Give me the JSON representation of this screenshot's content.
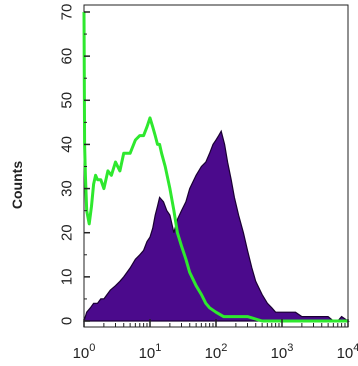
{
  "chart_data": {
    "type": "area",
    "ylabel": "Counts",
    "xscale": "log",
    "xlim": [
      1,
      10000
    ],
    "ylim": [
      0,
      70
    ],
    "grid": false,
    "yticks": [
      {
        "value": 0,
        "label": "0"
      },
      {
        "value": 10,
        "label": "10"
      },
      {
        "value": 20,
        "label": "20"
      },
      {
        "value": 30,
        "label": "30"
      },
      {
        "value": 40,
        "label": "40"
      },
      {
        "value": 50,
        "label": "50"
      },
      {
        "value": 60,
        "label": "60"
      },
      {
        "value": 70,
        "label": "70"
      }
    ],
    "xticks": [
      {
        "value": 1,
        "base": "10",
        "exp": "0"
      },
      {
        "value": 10,
        "base": "10",
        "exp": "1"
      },
      {
        "value": 100,
        "base": "10",
        "exp": "2"
      },
      {
        "value": 1000,
        "base": "10",
        "exp": "3"
      },
      {
        "value": 10000,
        "base": "10",
        "exp": "4"
      }
    ],
    "series": [
      {
        "style": "filled",
        "color": "#4b0a8c",
        "x": [
          1.0,
          1.1,
          1.25,
          1.4,
          1.6,
          1.8,
          2.0,
          2.5,
          3.0,
          3.5,
          4.0,
          5.0,
          6.0,
          7.0,
          8.0,
          9.0,
          10,
          11,
          12,
          13,
          14,
          16,
          18,
          20,
          23,
          26,
          30,
          35,
          40,
          50,
          60,
          70,
          80,
          90,
          100,
          110,
          120,
          135,
          150,
          170,
          190,
          220,
          260,
          300,
          350,
          400,
          500,
          600,
          700,
          800,
          1000,
          1300,
          1600,
          2000,
          2500,
          3000,
          4000,
          5000,
          6000,
          7000,
          8000,
          10000
        ],
        "y": [
          0,
          2,
          3,
          4,
          4,
          5,
          5,
          7,
          8,
          9,
          10,
          12,
          14,
          15,
          16,
          18,
          19,
          21,
          24,
          26,
          28,
          27,
          25,
          24,
          20,
          23,
          25,
          27,
          30,
          33,
          35,
          36,
          38,
          40,
          41,
          42,
          43,
          40,
          36,
          32,
          28,
          24,
          20,
          16,
          12,
          9,
          6,
          4,
          3,
          2,
          2,
          2,
          2,
          1,
          1,
          1,
          1,
          1,
          0,
          0,
          1,
          0
        ]
      },
      {
        "style": "line",
        "color": "#2ee82e",
        "x": [
          1.0,
          1.02,
          1.05,
          1.1,
          1.2,
          1.3,
          1.4,
          1.5,
          1.6,
          1.8,
          2.0,
          2.3,
          2.6,
          3.0,
          3.5,
          4.0,
          5.0,
          6.0,
          7.0,
          8.0,
          9.0,
          10,
          11,
          12,
          13,
          14,
          15,
          17,
          20,
          23,
          26,
          30,
          35,
          40,
          50,
          60,
          70,
          80,
          100,
          130,
          160,
          200,
          300,
          500,
          1000,
          2000,
          5000,
          10000
        ],
        "y": [
          70,
          40,
          33,
          25,
          22,
          26,
          31,
          33,
          32,
          32,
          30,
          34,
          33,
          36,
          34,
          38,
          38,
          41,
          42,
          42,
          44,
          46,
          44,
          42,
          40,
          40,
          38,
          35,
          30,
          25,
          20,
          17,
          14,
          11,
          8,
          6,
          4,
          3,
          2,
          1,
          1,
          1,
          1,
          0,
          0,
          0,
          0,
          0
        ]
      }
    ]
  }
}
